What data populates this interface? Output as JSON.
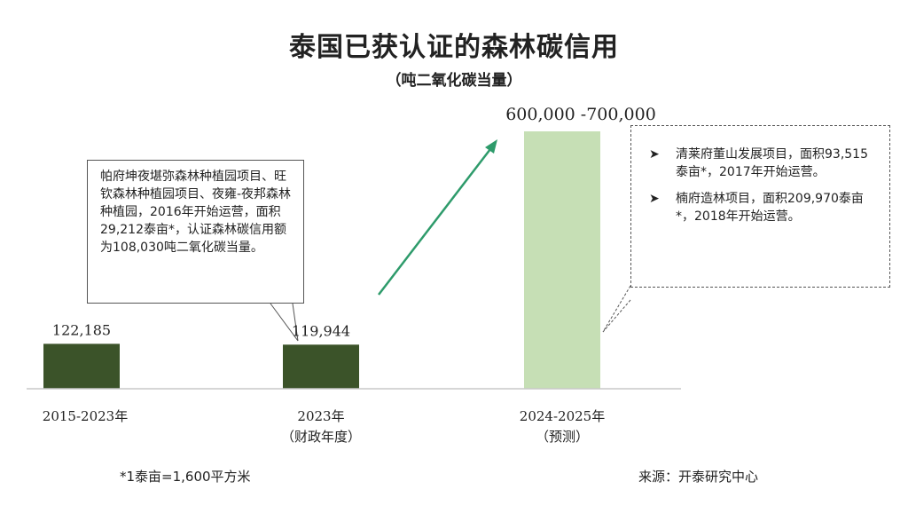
{
  "title": "泰国已获认证的森林碳信用",
  "subtitle": "（吨二氧化碳当量）",
  "chart_data": {
    "type": "bar",
    "categories": [
      {
        "line1": "2015-2023年",
        "line2": ""
      },
      {
        "line1": "2023年",
        "line2": "（财政年度）"
      },
      {
        "line1": "2024-2025年",
        "line2": "（预测）"
      }
    ],
    "values": [
      122185,
      119944,
      700000
    ],
    "value_labels": [
      "122,185",
      "119,944",
      "600,000 -700,000"
    ],
    "forecast_range": [
      600000,
      700000
    ],
    "colors": [
      "#3b5329",
      "#3b5329",
      "#c6dfb5"
    ],
    "arrow_color": "#2e9b6b"
  },
  "callouts": {
    "left": "帕府坤夜堪弥森林种植园项目、旺钦森林种植园项目、夜雍-夜邦森林种植园，2016年开始运营，面积29,212泰亩*，认证森林碳信用额为108,030吨二氧化碳当量。",
    "right": [
      "清莱府董山发展项目，面积93,515泰亩*，2017年开始运营。",
      "楠府造林项目，面积209,970泰亩*，2018年开始运营。"
    ]
  },
  "footnote": "*1泰亩=1,600平方米",
  "source": "来源：开泰研究中心"
}
